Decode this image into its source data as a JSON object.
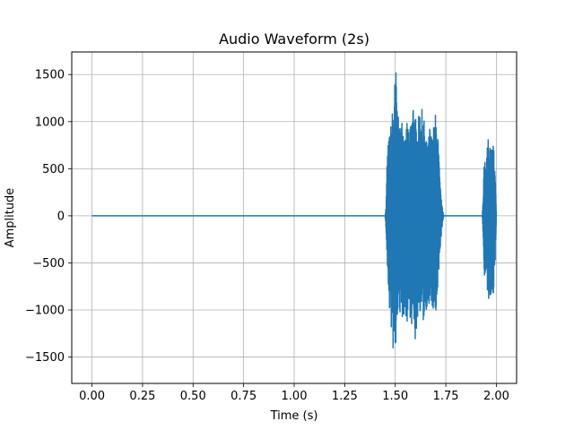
{
  "chart_data": {
    "type": "line",
    "title": "Audio Waveform (2s)",
    "xlabel": "Time (s)",
    "ylabel": "Amplitude",
    "xlim": [
      -0.1,
      2.1
    ],
    "ylim": [
      -1780,
      1740
    ],
    "xticks": [
      0.0,
      0.25,
      0.5,
      0.75,
      1.0,
      1.25,
      1.5,
      1.75,
      2.0
    ],
    "xtick_labels": [
      "0.00",
      "0.25",
      "0.50",
      "0.75",
      "1.00",
      "1.25",
      "1.50",
      "1.75",
      "2.00"
    ],
    "yticks": [
      -1500,
      -1000,
      -500,
      0,
      500,
      1000,
      1500
    ],
    "ytick_labels": [
      "−1500",
      "−1000",
      "−500",
      "0",
      "500",
      "1000",
      "1500"
    ],
    "grid": true,
    "color": "#1f77b4",
    "series": [
      {
        "segments": [
          {
            "x_start": 0.0,
            "x_end": 1.45,
            "envelope": [
              [
                0.0,
                0
              ],
              [
                1.45,
                0
              ]
            ]
          },
          {
            "x_start": 1.45,
            "x_end": 1.74,
            "envelope": [
              [
                1.45,
                0
              ],
              [
                1.455,
                120
              ],
              [
                1.46,
                700
              ],
              [
                1.47,
                850
              ],
              [
                1.48,
                1000
              ],
              [
                1.49,
                1230
              ],
              [
                1.5,
                1520
              ],
              [
                1.505,
                1580
              ],
              [
                1.51,
                1150
              ],
              [
                1.52,
                950
              ],
              [
                1.53,
                1050
              ],
              [
                1.54,
                1000
              ],
              [
                1.55,
                920
              ],
              [
                1.56,
                1000
              ],
              [
                1.57,
                870
              ],
              [
                1.58,
                1060
              ],
              [
                1.59,
                1280
              ],
              [
                1.6,
                1050
              ],
              [
                1.61,
                950
              ],
              [
                1.62,
                1140
              ],
              [
                1.63,
                1150
              ],
              [
                1.64,
                1060
              ],
              [
                1.65,
                900
              ],
              [
                1.66,
                700
              ],
              [
                1.67,
                980
              ],
              [
                1.68,
                850
              ],
              [
                1.69,
                960
              ],
              [
                1.7,
                1110
              ],
              [
                1.71,
                900
              ],
              [
                1.715,
                700
              ],
              [
                1.72,
                400
              ],
              [
                1.73,
                120
              ],
              [
                1.74,
                0
              ]
            ],
            "min_envelope": [
              [
                1.45,
                0
              ],
              [
                1.455,
                -200
              ],
              [
                1.46,
                -560
              ],
              [
                1.47,
                -980
              ],
              [
                1.48,
                -1240
              ],
              [
                1.49,
                -1470
              ],
              [
                1.5,
                -1620
              ],
              [
                1.505,
                -1500
              ],
              [
                1.51,
                -1100
              ],
              [
                1.52,
                -1000
              ],
              [
                1.53,
                -1200
              ],
              [
                1.54,
                -1050
              ],
              [
                1.55,
                -1080
              ],
              [
                1.56,
                -1150
              ],
              [
                1.57,
                -1030
              ],
              [
                1.58,
                -1170
              ],
              [
                1.59,
                -1200
              ],
              [
                1.6,
                -1380
              ],
              [
                1.61,
                -1100
              ],
              [
                1.62,
                -1000
              ],
              [
                1.63,
                -1080
              ],
              [
                1.64,
                -1150
              ],
              [
                1.65,
                -1030
              ],
              [
                1.66,
                -940
              ],
              [
                1.67,
                -1060
              ],
              [
                1.68,
                -960
              ],
              [
                1.69,
                -1050
              ],
              [
                1.7,
                -1130
              ],
              [
                1.71,
                -900
              ],
              [
                1.715,
                -700
              ],
              [
                1.72,
                -420
              ],
              [
                1.73,
                -150
              ],
              [
                1.74,
                0
              ]
            ]
          },
          {
            "x_start": 1.74,
            "x_end": 1.93,
            "envelope": [
              [
                1.74,
                0
              ],
              [
                1.93,
                0
              ]
            ]
          },
          {
            "x_start": 1.93,
            "x_end": 2.0,
            "envelope": [
              [
                1.93,
                0
              ],
              [
                1.935,
                200
              ],
              [
                1.94,
                620
              ],
              [
                1.95,
                700
              ],
              [
                1.96,
                850
              ],
              [
                1.97,
                750
              ],
              [
                1.98,
                700
              ],
              [
                1.985,
                890
              ],
              [
                1.99,
                600
              ],
              [
                1.995,
                380
              ],
              [
                2.0,
                0
              ]
            ],
            "min_envelope": [
              [
                1.93,
                0
              ],
              [
                1.935,
                -250
              ],
              [
                1.94,
                -680
              ],
              [
                1.95,
                -780
              ],
              [
                1.96,
                -870
              ],
              [
                1.97,
                -920
              ],
              [
                1.98,
                -800
              ],
              [
                1.985,
                -900
              ],
              [
                1.99,
                -700
              ],
              [
                1.995,
                -450
              ],
              [
                2.0,
                0
              ]
            ]
          }
        ]
      }
    ]
  }
}
